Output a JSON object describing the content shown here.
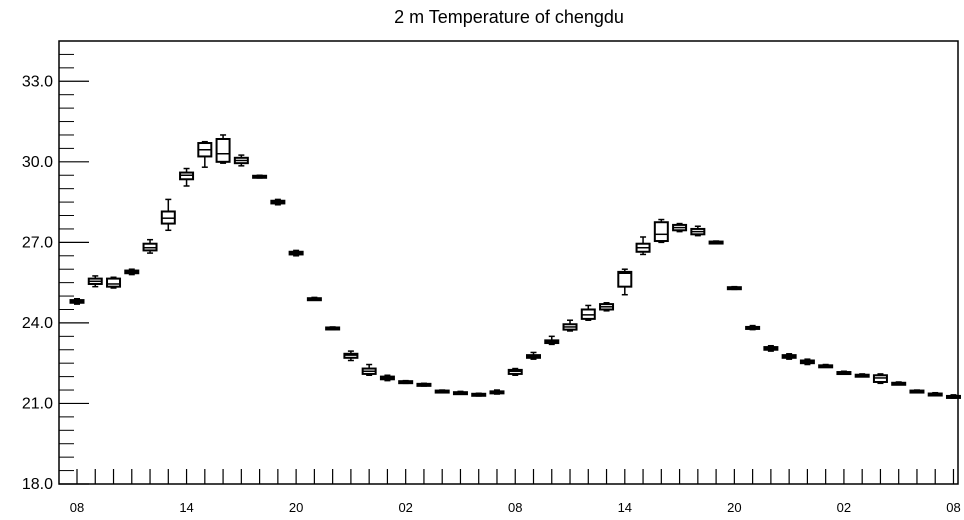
{
  "chart_data": {
    "type": "box",
    "title": "2 m Temperature of chengdu",
    "xlabel": "",
    "ylabel": "",
    "ylim": [
      18.0,
      34.5
    ],
    "yticks": [
      "18.0",
      "21.0",
      "24.0",
      "27.0",
      "30.0",
      "33.0"
    ],
    "x_tick_labels": [
      {
        "hour": 0,
        "label": "08"
      },
      {
        "hour": 6,
        "label": "14"
      },
      {
        "hour": 12,
        "label": "20"
      },
      {
        "hour": 18,
        "label": "02"
      },
      {
        "hour": 24,
        "label": "08"
      },
      {
        "hour": 30,
        "label": "14"
      },
      {
        "hour": 36,
        "label": "20"
      },
      {
        "hour": 42,
        "label": "02"
      },
      {
        "hour": 48,
        "label": "08"
      }
    ],
    "grid": false,
    "series": [
      {
        "boxes": [
          {
            "hour": 0,
            "min": 24.7,
            "q1": 24.75,
            "median": 24.8,
            "q3": 24.85,
            "max": 24.9
          },
          {
            "hour": 1,
            "min": 25.35,
            "q1": 25.45,
            "median": 25.55,
            "q3": 25.65,
            "max": 25.75
          },
          {
            "hour": 2,
            "min": 25.3,
            "q1": 25.35,
            "median": 25.45,
            "q3": 25.65,
            "max": 25.7
          },
          {
            "hour": 3,
            "min": 25.8,
            "q1": 25.85,
            "median": 25.9,
            "q3": 25.95,
            "max": 26.0
          },
          {
            "hour": 4,
            "min": 26.6,
            "q1": 26.7,
            "median": 26.8,
            "q3": 26.95,
            "max": 27.1
          },
          {
            "hour": 5,
            "min": 27.45,
            "q1": 27.7,
            "median": 27.9,
            "q3": 28.15,
            "max": 28.6
          },
          {
            "hour": 6,
            "min": 29.1,
            "q1": 29.35,
            "median": 29.5,
            "q3": 29.6,
            "max": 29.75
          },
          {
            "hour": 7,
            "min": 29.8,
            "q1": 30.2,
            "median": 30.45,
            "q3": 30.7,
            "max": 30.75
          },
          {
            "hour": 8,
            "min": 29.95,
            "q1": 30.0,
            "median": 30.3,
            "q3": 30.85,
            "max": 31.0
          },
          {
            "hour": 9,
            "min": 29.85,
            "q1": 29.95,
            "median": 30.05,
            "q3": 30.15,
            "max": 30.25
          },
          {
            "hour": 10,
            "min": 29.4,
            "q1": 29.42,
            "median": 29.45,
            "q3": 29.48,
            "max": 29.5
          },
          {
            "hour": 11,
            "min": 28.4,
            "q1": 28.45,
            "median": 28.5,
            "q3": 28.55,
            "max": 28.6
          },
          {
            "hour": 12,
            "min": 26.5,
            "q1": 26.55,
            "median": 26.6,
            "q3": 26.65,
            "max": 26.7
          },
          {
            "hour": 13,
            "min": 24.85,
            "q1": 24.87,
            "median": 24.9,
            "q3": 24.92,
            "max": 24.95
          },
          {
            "hour": 14,
            "min": 23.75,
            "q1": 23.78,
            "median": 23.8,
            "q3": 23.83,
            "max": 23.85
          },
          {
            "hour": 15,
            "min": 22.6,
            "q1": 22.7,
            "median": 22.8,
            "q3": 22.85,
            "max": 22.95
          },
          {
            "hour": 16,
            "min": 22.05,
            "q1": 22.1,
            "median": 22.2,
            "q3": 22.3,
            "max": 22.45
          },
          {
            "hour": 17,
            "min": 21.85,
            "q1": 21.9,
            "median": 21.95,
            "q3": 22.0,
            "max": 22.05
          },
          {
            "hour": 18,
            "min": 21.75,
            "q1": 21.78,
            "median": 21.8,
            "q3": 21.83,
            "max": 21.85
          },
          {
            "hour": 19,
            "min": 21.65,
            "q1": 21.68,
            "median": 21.7,
            "q3": 21.73,
            "max": 21.75
          },
          {
            "hour": 20,
            "min": 21.4,
            "q1": 21.42,
            "median": 21.45,
            "q3": 21.48,
            "max": 21.5
          },
          {
            "hour": 21,
            "min": 21.35,
            "q1": 21.37,
            "median": 21.4,
            "q3": 21.42,
            "max": 21.45
          },
          {
            "hour": 22,
            "min": 21.28,
            "q1": 21.3,
            "median": 21.33,
            "q3": 21.36,
            "max": 21.38
          },
          {
            "hour": 23,
            "min": 21.35,
            "q1": 21.38,
            "median": 21.4,
            "q3": 21.45,
            "max": 21.5
          },
          {
            "hour": 24,
            "min": 22.05,
            "q1": 22.1,
            "median": 22.2,
            "q3": 22.25,
            "max": 22.3
          },
          {
            "hour": 25,
            "min": 22.65,
            "q1": 22.7,
            "median": 22.75,
            "q3": 22.8,
            "max": 22.9
          },
          {
            "hour": 26,
            "min": 23.2,
            "q1": 23.25,
            "median": 23.3,
            "q3": 23.35,
            "max": 23.5
          },
          {
            "hour": 27,
            "min": 23.7,
            "q1": 23.75,
            "median": 23.85,
            "q3": 23.95,
            "max": 24.1
          },
          {
            "hour": 28,
            "min": 24.1,
            "q1": 24.15,
            "median": 24.3,
            "q3": 24.5,
            "max": 24.65
          },
          {
            "hour": 29,
            "min": 24.45,
            "q1": 24.5,
            "median": 24.6,
            "q3": 24.7,
            "max": 24.75
          },
          {
            "hour": 30,
            "min": 25.05,
            "q1": 25.35,
            "median": 25.85,
            "q3": 25.9,
            "max": 26.0
          },
          {
            "hour": 31,
            "min": 26.55,
            "q1": 26.65,
            "median": 26.8,
            "q3": 26.95,
            "max": 27.2
          },
          {
            "hour": 32,
            "min": 27.0,
            "q1": 27.05,
            "median": 27.3,
            "q3": 27.75,
            "max": 27.85
          },
          {
            "hour": 33,
            "min": 27.4,
            "q1": 27.45,
            "median": 27.55,
            "q3": 27.65,
            "max": 27.7
          },
          {
            "hour": 34,
            "min": 27.25,
            "q1": 27.3,
            "median": 27.4,
            "q3": 27.5,
            "max": 27.6
          },
          {
            "hour": 35,
            "min": 26.95,
            "q1": 26.97,
            "median": 27.0,
            "q3": 27.03,
            "max": 27.05
          },
          {
            "hour": 36,
            "min": 25.25,
            "q1": 25.28,
            "median": 25.3,
            "q3": 25.33,
            "max": 25.35
          },
          {
            "hour": 37,
            "min": 23.75,
            "q1": 23.78,
            "median": 23.8,
            "q3": 23.85,
            "max": 23.9
          },
          {
            "hour": 38,
            "min": 22.95,
            "q1": 23.0,
            "median": 23.05,
            "q3": 23.1,
            "max": 23.15
          },
          {
            "hour": 39,
            "min": 22.65,
            "q1": 22.7,
            "median": 22.75,
            "q3": 22.8,
            "max": 22.85
          },
          {
            "hour": 40,
            "min": 22.45,
            "q1": 22.5,
            "median": 22.55,
            "q3": 22.6,
            "max": 22.65
          },
          {
            "hour": 41,
            "min": 22.35,
            "q1": 22.37,
            "median": 22.4,
            "q3": 22.42,
            "max": 22.45
          },
          {
            "hour": 42,
            "min": 22.1,
            "q1": 22.12,
            "median": 22.15,
            "q3": 22.17,
            "max": 22.2
          },
          {
            "hour": 43,
            "min": 22.0,
            "q1": 22.02,
            "median": 22.05,
            "q3": 22.07,
            "max": 22.1
          },
          {
            "hour": 44,
            "min": 21.75,
            "q1": 21.8,
            "median": 21.95,
            "q3": 22.05,
            "max": 22.1
          },
          {
            "hour": 45,
            "min": 21.7,
            "q1": 21.72,
            "median": 21.75,
            "q3": 21.77,
            "max": 21.8
          },
          {
            "hour": 46,
            "min": 21.4,
            "q1": 21.43,
            "median": 21.45,
            "q3": 21.48,
            "max": 21.5
          },
          {
            "hour": 47,
            "min": 21.3,
            "q1": 21.32,
            "median": 21.35,
            "q3": 21.37,
            "max": 21.4
          },
          {
            "hour": 48,
            "min": 21.2,
            "q1": 21.23,
            "median": 21.25,
            "q3": 21.28,
            "max": 21.32
          }
        ]
      }
    ]
  }
}
